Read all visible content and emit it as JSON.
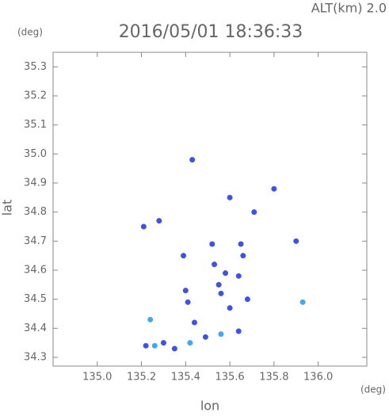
{
  "chart_data": {
    "type": "scatter",
    "header": "ALT(km) 2.0",
    "title": "2016/05/01 18:36:33",
    "y_unit": "(deg)",
    "x_unit": "(deg)",
    "x_label": "lon",
    "y_label": "lat",
    "xlim": [
      134.8,
      136.22
    ],
    "ylim": [
      34.27,
      35.35
    ],
    "xticks": [
      {
        "value": 135,
        "label": "135.0"
      },
      135.2,
      135.4,
      135.6,
      135.8,
      {
        "value": 136,
        "label": "136.0"
      }
    ],
    "yticks": [
      34.3,
      34.4,
      34.5,
      34.6,
      34.7,
      34.8,
      34.9,
      {
        "value": 35,
        "label": "35.0"
      },
      35.1,
      35.2,
      35.3
    ],
    "series": [
      {
        "color": "#3f52e8",
        "x": [
          135.43,
          135.8,
          135.6,
          135.71,
          135.21,
          135.28,
          135.9,
          135.52,
          135.65,
          135.39,
          135.56,
          135.4,
          135.41,
          135.44,
          135.68,
          135.22,
          135.3,
          135.35,
          135.49,
          135.64,
          135.64,
          135.58,
          135.55,
          135.6,
          135.53,
          135.66
        ],
        "values": [
          34.98,
          34.88,
          34.85,
          34.8,
          34.75,
          34.77,
          34.7,
          34.69,
          34.69,
          34.65,
          34.52,
          34.53,
          34.49,
          34.42,
          34.5,
          34.34,
          34.35,
          34.33,
          34.37,
          34.39,
          34.58,
          34.59,
          34.55,
          34.47,
          34.62,
          34.65
        ]
      },
      {
        "color": "#41a9f2",
        "x": [
          135.93,
          135.24,
          135.42,
          135.56,
          135.26
        ],
        "values": [
          34.49,
          34.43,
          34.35,
          34.38,
          34.34
        ]
      }
    ]
  }
}
